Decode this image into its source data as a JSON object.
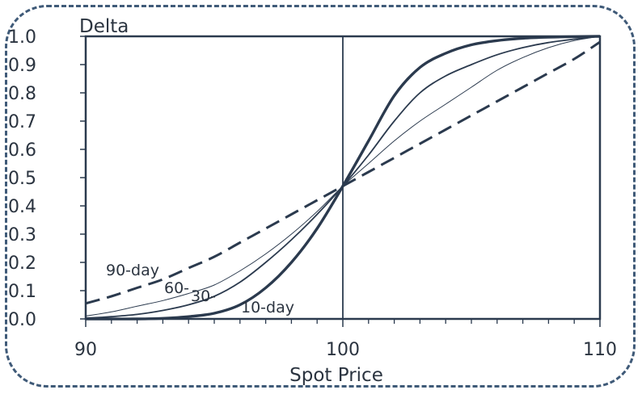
{
  "chart_data": {
    "type": "line",
    "ylabel": "Delta",
    "xlabel": "Spot Price",
    "xlim": [
      90,
      110
    ],
    "ylim": [
      0.0,
      1.0
    ],
    "x_ticks": [
      "90",
      "100",
      "110"
    ],
    "y_ticks": [
      "0.0",
      "0.1",
      "0.2",
      "0.3",
      "0.4",
      "0.5",
      "0.6",
      "0.7",
      "0.8",
      "0.9",
      "1.0"
    ],
    "x_minor_ticks": [
      91,
      92,
      93,
      94,
      95,
      96,
      97,
      98,
      99,
      101,
      102,
      103,
      104,
      105,
      106,
      107,
      108,
      109
    ],
    "reference_line_x": 100,
    "grid": false,
    "series": [
      {
        "name": "10-day",
        "style": "solid-thick",
        "x": [
          90,
          91,
          92,
          93,
          94,
          95,
          96,
          97,
          98,
          99,
          100,
          101,
          102,
          103,
          104,
          105,
          106,
          107,
          108,
          109,
          110
        ],
        "y": [
          0.0,
          0.0,
          0.0,
          0.002,
          0.008,
          0.02,
          0.05,
          0.11,
          0.2,
          0.32,
          0.47,
          0.63,
          0.79,
          0.89,
          0.94,
          0.97,
          0.985,
          0.993,
          0.997,
          0.999,
          1.0
        ]
      },
      {
        "name": "30-",
        "style": "solid",
        "x": [
          90,
          91,
          92,
          93,
          94,
          95,
          96,
          97,
          98,
          99,
          100,
          101,
          102,
          103,
          104,
          105,
          106,
          107,
          108,
          109,
          110
        ],
        "y": [
          0.003,
          0.008,
          0.016,
          0.03,
          0.05,
          0.08,
          0.13,
          0.2,
          0.28,
          0.37,
          0.47,
          0.58,
          0.7,
          0.8,
          0.86,
          0.9,
          0.935,
          0.96,
          0.978,
          0.99,
          1.0
        ]
      },
      {
        "name": "60-",
        "style": "solid-thin",
        "x": [
          90,
          91,
          92,
          93,
          94,
          95,
          96,
          97,
          98,
          99,
          100,
          101,
          102,
          103,
          104,
          105,
          106,
          107,
          108,
          109,
          110
        ],
        "y": [
          0.01,
          0.025,
          0.045,
          0.065,
          0.09,
          0.12,
          0.17,
          0.23,
          0.3,
          0.38,
          0.47,
          0.55,
          0.63,
          0.7,
          0.76,
          0.82,
          0.88,
          0.925,
          0.96,
          0.985,
          1.0
        ]
      },
      {
        "name": "90-day",
        "style": "dashed",
        "x": [
          90,
          91,
          92,
          93,
          94,
          95,
          96,
          97,
          98,
          99,
          100,
          101,
          102,
          103,
          104,
          105,
          106,
          107,
          108,
          109,
          110
        ],
        "y": [
          0.055,
          0.08,
          0.11,
          0.14,
          0.18,
          0.22,
          0.27,
          0.32,
          0.37,
          0.42,
          0.47,
          0.52,
          0.57,
          0.62,
          0.67,
          0.72,
          0.77,
          0.82,
          0.87,
          0.92,
          0.98
        ]
      }
    ],
    "colors": {
      "line": "#2b3a4e",
      "frame": "#3f5a78",
      "text": "#2b3440"
    }
  }
}
